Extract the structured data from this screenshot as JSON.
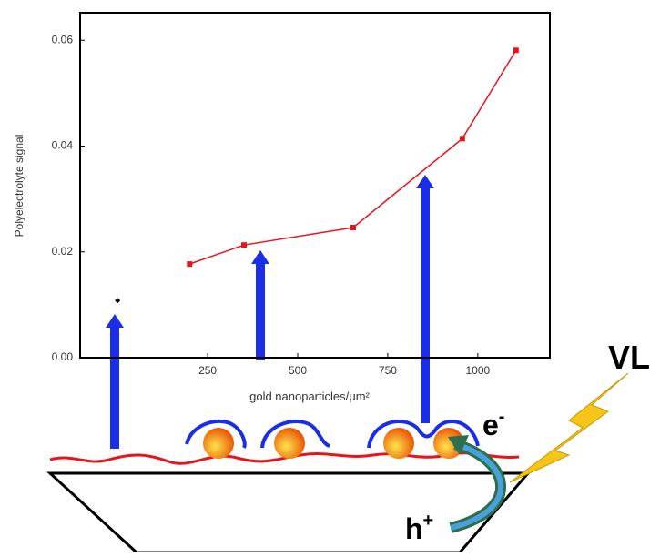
{
  "chart_data": {
    "type": "line",
    "y_label": "Polyelectrolyte signal",
    "x_label": "gold nanoparticles/μm²",
    "xlim": [
      -104,
      1200
    ],
    "xticks": [
      250,
      500,
      750,
      1000
    ],
    "ylim": [
      0,
      0.0652
    ],
    "yticks": [
      {
        "value": 0,
        "label": "0.00"
      },
      0.02,
      0.04,
      0.06
    ],
    "series": [
      {
        "color": "#e8141c",
        "marker": "square",
        "line": true,
        "x": [
          200,
          351,
          654,
          957,
          1106
        ],
        "values": [
          0.0177,
          0.0213,
          0.0246,
          0.0414,
          0.0581
        ]
      },
      {
        "color": "#000000",
        "marker": "diamond",
        "line": false,
        "x": [
          0
        ],
        "values": [
          0.0108
        ]
      }
    ]
  },
  "annotations": {
    "light": "VL",
    "electron": "e",
    "electron_sign": "-",
    "hole": "h",
    "hole_sign": "+"
  }
}
